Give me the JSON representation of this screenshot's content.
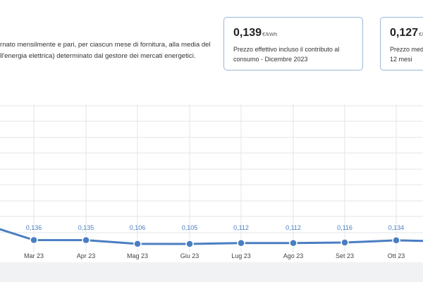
{
  "description": {
    "lines": [
      "rnato mensilmente e pari, per ciascun mese di fornitura, alla media del",
      "ll'energia elettrica) determinato dal gestore dei mercati energetici."
    ]
  },
  "cards": [
    {
      "value": "0,139",
      "unit": "€/kWh",
      "caption": [
        "Prezzo effettivo incluso il contributo al",
        "consumo - Dicembre 2023"
      ]
    },
    {
      "value": "0,127",
      "unit": "€/",
      "caption": [
        "Prezzo medi",
        "12 mesi"
      ]
    }
  ],
  "colors": {
    "accent": "#4a7ec2",
    "label": "#4a7ec2",
    "card_border": "#9bb7d8",
    "grid": "#e3e6ea"
  },
  "chart_data": {
    "type": "line",
    "categories": [
      "Mar 23",
      "Apr 23",
      "Mag 23",
      "Giu 23",
      "Lug 23",
      "Ago 23",
      "Set 23",
      "Ott 23"
    ],
    "values": [
      0.136,
      0.135,
      0.106,
      0.105,
      0.112,
      0.112,
      0.116,
      0.134
    ],
    "value_labels": [
      "0,136",
      "0,135",
      "0,106",
      "0,105",
      "0,112",
      "0,112",
      "0,116",
      "0,134"
    ],
    "grid": true
  }
}
